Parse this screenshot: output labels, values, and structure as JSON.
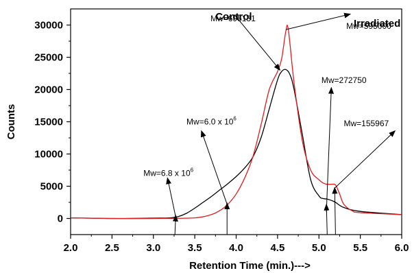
{
  "chart_data": {
    "type": "line",
    "title": "",
    "xlabel": "Retention Time (min.)--->",
    "ylabel": "Counts",
    "xlim": [
      2.0,
      6.0
    ],
    "ylim": [
      -2500,
      32500
    ],
    "xticks": [
      "2.0",
      "2.5",
      "3.0",
      "3.5",
      "4.0",
      "4.5",
      "5.0",
      "5.5",
      "6.0"
    ],
    "yticks": [
      "0",
      "5000",
      "10000",
      "15000",
      "20000",
      "25000",
      "30000"
    ],
    "grid": false,
    "series": [
      {
        "name": "Control",
        "color": "#000000",
        "x": [
          2.0,
          2.5,
          3.0,
          3.2,
          3.3,
          3.4,
          3.5,
          3.6,
          3.7,
          3.8,
          3.9,
          4.0,
          4.1,
          4.2,
          4.3,
          4.4,
          4.5,
          4.55,
          4.6,
          4.65,
          4.7,
          4.8,
          4.9,
          5.0,
          5.05,
          5.1,
          5.15,
          5.2,
          5.3,
          5.5,
          6.0
        ],
        "y": [
          100,
          0,
          50,
          100,
          300,
          800,
          1600,
          2500,
          3400,
          4400,
          5400,
          6500,
          7800,
          9500,
          12500,
          17000,
          21500,
          22800,
          23100,
          22300,
          20000,
          13000,
          6000,
          3500,
          3100,
          3000,
          2800,
          2500,
          1700,
          1100,
          600
        ]
      },
      {
        "name": "Irradiated",
        "color": "#e41a1c",
        "x": [
          2.0,
          2.5,
          3.0,
          3.5,
          3.7,
          3.8,
          3.9,
          4.0,
          4.1,
          4.2,
          4.3,
          4.4,
          4.5,
          4.55,
          4.6,
          4.63,
          4.7,
          4.8,
          4.9,
          5.0,
          5.05,
          5.1,
          5.15,
          5.2,
          5.25,
          5.3,
          5.4,
          5.5,
          6.0
        ],
        "y": [
          100,
          0,
          0,
          100,
          600,
          1200,
          2200,
          3800,
          6200,
          9500,
          14500,
          20000,
          22800,
          24800,
          29000,
          29300,
          21000,
          12000,
          7500,
          6000,
          5500,
          5300,
          5300,
          5200,
          3800,
          2200,
          1200,
          900,
          600
        ]
      }
    ],
    "labels": {
      "control": "Control",
      "irradiated": "Irradiated"
    },
    "annotations": [
      {
        "text": "Mw=695131",
        "sup": "",
        "label_x": 3.69,
        "label_y": 30600,
        "tip_x": 4.53,
        "tip_y": 23000,
        "tail_x": 3.98,
        "tail_y": 31600
      },
      {
        "text": "Mw=595000",
        "sup": "",
        "label_x": 5.33,
        "label_y": 29400,
        "tip_x": 5.38,
        "tip_y": 31700,
        "tail_x": 4.6,
        "tail_y": 29300
      },
      {
        "text": "Mw=272750",
        "sup": "",
        "label_x": 5.03,
        "label_y": 21000,
        "tip_x": 5.15,
        "tip_y": 20300,
        "tail_x": 5.09,
        "tail_y": 1000
      },
      {
        "text": "Mw=155967",
        "sup": "",
        "label_x": 5.3,
        "label_y": 14300,
        "tip_x": 5.92,
        "tip_y": 13600,
        "tail_x": 5.19,
        "tail_y": 4700
      },
      {
        "text": "Mw=6.0 x 10",
        "sup": "6",
        "label_x": 3.4,
        "label_y": 14600,
        "tip_x": 3.58,
        "tip_y": 13600,
        "tail_x": 3.89,
        "tail_y": 2200
      },
      {
        "text": "Mw=6.8 x 10",
        "sup": "6",
        "label_x": 2.88,
        "label_y": 6600,
        "tip_x": 3.17,
        "tip_y": 6300,
        "tail_x": 3.27,
        "tail_y": 200
      },
      {
        "text": "",
        "sup": "",
        "label_x": 0,
        "label_y": 0,
        "tip_x": 3.27,
        "tip_y": 500,
        "tail_x": 3.26,
        "tail_y": -2500
      },
      {
        "text": "",
        "sup": "",
        "label_x": 0,
        "label_y": 0,
        "tip_x": 3.89,
        "tip_y": 2400,
        "tail_x": 3.89,
        "tail_y": -2500
      },
      {
        "text": "",
        "sup": "",
        "label_x": 0,
        "label_y": 0,
        "tip_x": 5.19,
        "tip_y": 4800,
        "tail_x": 5.2,
        "tail_y": -2500
      },
      {
        "text": "",
        "sup": "",
        "label_x": 0,
        "label_y": 0,
        "tip_x": 5.09,
        "tip_y": 2200,
        "tail_x": 5.1,
        "tail_y": -2500
      }
    ]
  }
}
